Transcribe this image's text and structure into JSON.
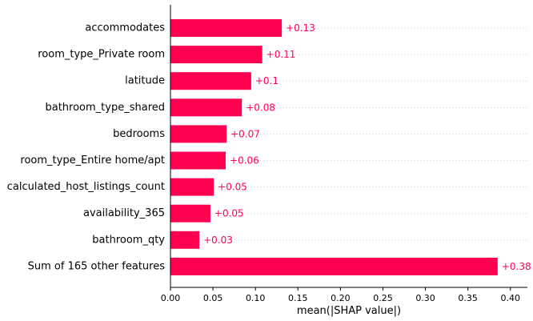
{
  "chart_data": {
    "type": "bar",
    "orientation": "horizontal",
    "xlabel": "mean(|SHAP value|)",
    "xlim": [
      0,
      0.42
    ],
    "x_ticks": [
      0.0,
      0.05,
      0.1,
      0.15,
      0.2,
      0.25,
      0.3,
      0.35,
      0.4
    ],
    "x_tick_labels": [
      "0.00",
      "0.05",
      "0.10",
      "0.15",
      "0.20",
      "0.25",
      "0.30",
      "0.35",
      "0.40"
    ],
    "grid": "dotted horizontal guides per row",
    "bar_color": "#ff0051",
    "label_color": "#ff0051",
    "categories": [
      "accommodates",
      "room_type_Private room",
      "latitude",
      "bathroom_type_shared",
      "bedrooms",
      "room_type_Entire home/apt",
      "calculated_host_listings_count",
      "availability_365",
      "bathroom_qty",
      "Sum of 165 other features"
    ],
    "values": [
      0.131,
      0.108,
      0.095,
      0.084,
      0.066,
      0.065,
      0.051,
      0.047,
      0.034,
      0.385
    ],
    "value_labels": [
      "+0.13",
      "+0.11",
      "+0.1",
      "+0.08",
      "+0.07",
      "+0.06",
      "+0.05",
      "+0.05",
      "+0.03",
      "+0.38"
    ]
  }
}
